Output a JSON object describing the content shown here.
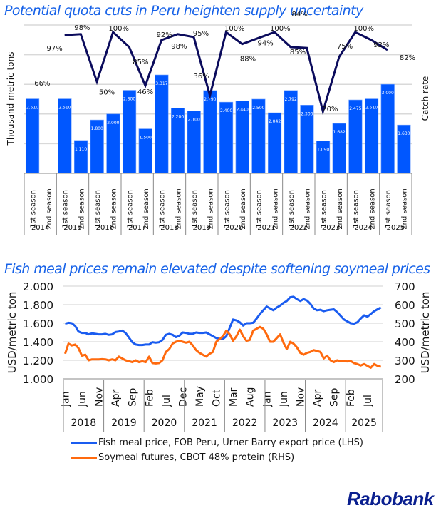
{
  "chart_data": [
    {
      "type": "bar",
      "title": "Potential quota cuts in Peru heighten supply uncertainty",
      "ylabel": "Thousand metric tons",
      "y2label": "Catch rate",
      "ylim": [
        0,
        5
      ],
      "y2lim": [
        0,
        100
      ],
      "grid": true,
      "categories": [
        "2014 1st season",
        "2014 2nd season",
        "2015 1st season",
        "2015 2nd season",
        "2016 1st season",
        "2016 2nd season",
        "2017 1st season",
        "2017 2nd season",
        "2018 1st season",
        "2018 2nd season",
        "2019 1st season",
        "2019 2nd season",
        "2020 1st season",
        "2020 2nd season",
        "2021 1st season",
        "2021 2nd season",
        "2022 1st season",
        "2022 2nd season",
        "2023 1st season",
        "2023 2nd season",
        "2024 1st season",
        "2024 2nd season",
        "2025 1st season",
        "2025 2nd season"
      ],
      "season_labels": [
        "1st season",
        "2nd season"
      ],
      "years": [
        "2014",
        "2015",
        "2016",
        "2017",
        "2018",
        "2019",
        "2020",
        "2021",
        "2022",
        "2023",
        "2024",
        "2025"
      ],
      "series": [
        {
          "name": "Quota (thousand metric tons)",
          "type": "bar",
          "color": "#0057ff",
          "values": [
            2.51,
            null,
            2.51,
            1.11,
            1.8,
            2.0,
            2.8,
            1.5,
            3.317,
            2.2,
            2.1,
            2.79,
            2.4,
            2.44,
            2.5,
            2.042,
            2.792,
            2.3,
            1.09,
            1.682,
            2.475,
            2.51,
            3.0,
            1.63
          ],
          "labels": [
            "2.510",
            "",
            "2.510",
            "1.110",
            "1.800",
            "2.000",
            "2.800",
            "1.500",
            "3.317",
            "2.200",
            "2.100",
            "2.790",
            "2.400",
            "2.440",
            "2.500",
            "2.042",
            "2.792",
            "2.300",
            "1.090",
            "1.682",
            "2.475",
            "2.510",
            "3.000",
            "1.630"
          ]
        },
        {
          "name": "Catch rate",
          "type": "line",
          "color": "#0b0b5c",
          "values": [
            66,
            null,
            97,
            98,
            50,
            100,
            85,
            46,
            92,
            98,
            95,
            36,
            100,
            88,
            94,
            100,
            85,
            84,
            20,
            75,
            100,
            92,
            82,
            null
          ],
          "labels": [
            "66%",
            "",
            "97%",
            "98%",
            "50%",
            "100%",
            "85%",
            "46%",
            "92%",
            "98%",
            "95%",
            "36%",
            "100%",
            "88%",
            "94%",
            "100%",
            "85%",
            "84%",
            "20%",
            "75%",
            "100%",
            "92%",
            "82%",
            ""
          ]
        }
      ]
    },
    {
      "type": "line",
      "title": "Fish meal prices remain elevated despite softening soymeal prices",
      "ylabel": "USD/metric ton",
      "y2label": "USD/metric ton",
      "ylim": [
        1000,
        2000
      ],
      "y2lim": [
        200,
        700
      ],
      "yticks": [
        "2.000",
        "1.800",
        "1.600",
        "1.400",
        "1.200",
        "1.000"
      ],
      "y2ticks": [
        "700",
        "600",
        "500",
        "400",
        "300",
        "200"
      ],
      "grid": true,
      "x_start": "2018-01",
      "x_ticks": [
        {
          "label": "Jan",
          "m": 0
        },
        {
          "label": "Jun",
          "m": 5
        },
        {
          "label": "Nov",
          "m": 10
        },
        {
          "label": "Apr",
          "m": 15
        },
        {
          "label": "Sep",
          "m": 20
        },
        {
          "label": "Feb",
          "m": 25
        },
        {
          "label": "Jul",
          "m": 30
        },
        {
          "label": "Dec",
          "m": 35
        },
        {
          "label": "May",
          "m": 40
        },
        {
          "label": "Oct",
          "m": 45
        },
        {
          "label": "Mar",
          "m": 50
        },
        {
          "label": "Aug",
          "m": 55
        },
        {
          "label": "Jan",
          "m": 60
        },
        {
          "label": "Jun",
          "m": 65
        },
        {
          "label": "Nov",
          "m": 70
        },
        {
          "label": "Apr",
          "m": 75
        },
        {
          "label": "Sep",
          "m": 80
        },
        {
          "label": "Feb",
          "m": 85
        },
        {
          "label": "Jul",
          "m": 90
        }
      ],
      "years": [
        "2018",
        "2019",
        "2020",
        "2021",
        "2022",
        "2023",
        "2024",
        "2025"
      ],
      "legend_position": "bottom",
      "series": [
        {
          "name": "Fish meal price, FOB Peru, Urner Barry export price (LHS)",
          "axis": "left",
          "color": "#1a5cf0",
          "values": [
            1595,
            1605,
            1600,
            1570,
            1510,
            1495,
            1495,
            1480,
            1490,
            1485,
            1480,
            1480,
            1485,
            1475,
            1480,
            1505,
            1510,
            1520,
            1495,
            1445,
            1395,
            1370,
            1365,
            1365,
            1370,
            1370,
            1395,
            1390,
            1395,
            1420,
            1475,
            1485,
            1475,
            1450,
            1465,
            1500,
            1495,
            1485,
            1485,
            1500,
            1495,
            1495,
            1500,
            1480,
            1460,
            1440,
            1430,
            1430,
            1460,
            1550,
            1640,
            1630,
            1610,
            1575,
            1600,
            1600,
            1605,
            1650,
            1700,
            1740,
            1780,
            1760,
            1740,
            1770,
            1790,
            1820,
            1840,
            1880,
            1885,
            1860,
            1840,
            1860,
            1845,
            1810,
            1760,
            1740,
            1745,
            1730,
            1740,
            1745,
            1750,
            1720,
            1680,
            1640,
            1620,
            1600,
            1595,
            1610,
            1650,
            1685,
            1670,
            1700,
            1730,
            1750,
            1770
          ]
        },
        {
          "name": "Soymeal futures, CBOT 48% protein (RHS)",
          "axis": "right",
          "color": "#ff6a0e",
          "values": [
            335,
            390,
            380,
            385,
            365,
            325,
            330,
            300,
            305,
            305,
            305,
            306,
            305,
            300,
            305,
            300,
            320,
            310,
            300,
            295,
            290,
            300,
            290,
            295,
            290,
            320,
            285,
            283,
            285,
            300,
            345,
            360,
            390,
            400,
            405,
            400,
            395,
            400,
            380,
            355,
            340,
            330,
            320,
            335,
            345,
            400,
            415,
            430,
            460,
            440,
            405,
            430,
            465,
            430,
            405,
            410,
            460,
            470,
            480,
            470,
            440,
            400,
            400,
            420,
            440,
            395,
            360,
            400,
            390,
            370,
            340,
            330,
            340,
            345,
            355,
            350,
            345,
            310,
            325,
            300,
            290,
            300,
            295,
            295,
            294,
            296,
            285,
            280,
            272,
            280,
            270,
            260,
            280,
            270,
            265
          ]
        }
      ]
    }
  ],
  "logo": {
    "text": "Rabobank",
    "color": "#0a1f8f"
  }
}
